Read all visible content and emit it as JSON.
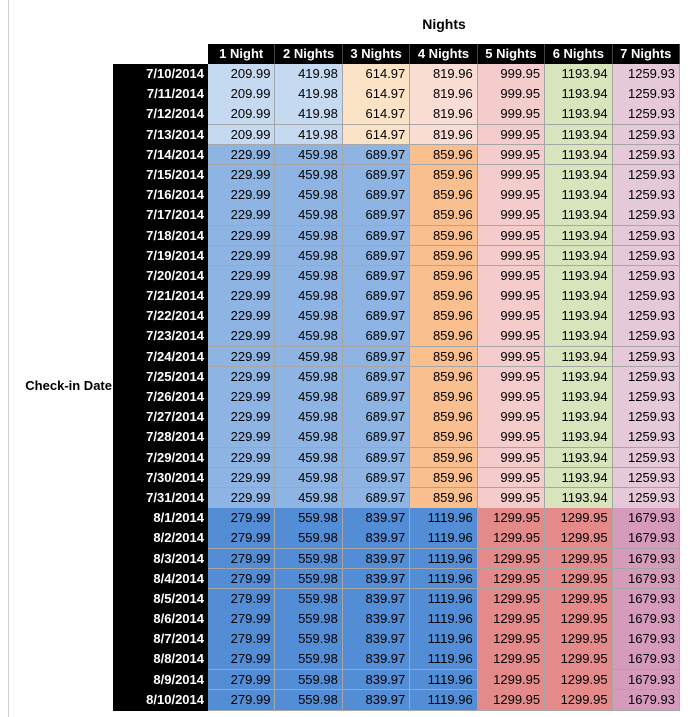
{
  "header": {
    "title": "Nights",
    "row_label": "Check-in Date"
  },
  "table": {
    "columns": [
      "1 Night",
      "2 Nights",
      "3 Nights",
      "4 Nights",
      "5 Nights",
      "6 Nights",
      "7 Nights"
    ],
    "rows": [
      {
        "date": "7/10/2014",
        "values": [
          209.99,
          419.98,
          614.97,
          819.96,
          999.95,
          1193.94,
          1259.93
        ],
        "colors": [
          "#c5d9f1",
          "#c5d9f1",
          "#fde3c6",
          "#f9dcd3",
          "#f4cccc",
          "#d8e4bc",
          "#e6c9d8"
        ]
      },
      {
        "date": "7/11/2014",
        "values": [
          209.99,
          419.98,
          614.97,
          819.96,
          999.95,
          1193.94,
          1259.93
        ],
        "colors": [
          "#c5d9f1",
          "#c5d9f1",
          "#fde3c6",
          "#f9dcd3",
          "#f4cccc",
          "#d8e4bc",
          "#e6c9d8"
        ]
      },
      {
        "date": "7/12/2014",
        "values": [
          209.99,
          419.98,
          614.97,
          819.96,
          999.95,
          1193.94,
          1259.93
        ],
        "colors": [
          "#c5d9f1",
          "#c5d9f1",
          "#fde3c6",
          "#f9dcd3",
          "#f4cccc",
          "#d8e4bc",
          "#e6c9d8"
        ]
      },
      {
        "date": "7/13/2014",
        "values": [
          209.99,
          419.98,
          614.97,
          819.96,
          999.95,
          1193.94,
          1259.93
        ],
        "colors": [
          "#c5d9f1",
          "#c5d9f1",
          "#fde3c6",
          "#f9dcd3",
          "#f4cccc",
          "#d8e4bc",
          "#e6c9d8"
        ]
      },
      {
        "date": "7/14/2014",
        "values": [
          229.99,
          459.98,
          689.97,
          859.96,
          999.95,
          1193.94,
          1259.93
        ],
        "colors": [
          "#8db4e2",
          "#8db4e2",
          "#8db4e2",
          "#fabf8f",
          "#f4cccc",
          "#d8e4bc",
          "#e6c9d8"
        ]
      },
      {
        "date": "7/15/2014",
        "values": [
          229.99,
          459.98,
          689.97,
          859.96,
          999.95,
          1193.94,
          1259.93
        ],
        "colors": [
          "#8db4e2",
          "#8db4e2",
          "#8db4e2",
          "#fabf8f",
          "#f4cccc",
          "#d8e4bc",
          "#e6c9d8"
        ]
      },
      {
        "date": "7/16/2014",
        "values": [
          229.99,
          459.98,
          689.97,
          859.96,
          999.95,
          1193.94,
          1259.93
        ],
        "colors": [
          "#8db4e2",
          "#8db4e2",
          "#8db4e2",
          "#fabf8f",
          "#f4cccc",
          "#d8e4bc",
          "#e6c9d8"
        ]
      },
      {
        "date": "7/17/2014",
        "values": [
          229.99,
          459.98,
          689.97,
          859.96,
          999.95,
          1193.94,
          1259.93
        ],
        "colors": [
          "#8db4e2",
          "#8db4e2",
          "#8db4e2",
          "#fabf8f",
          "#f4cccc",
          "#d8e4bc",
          "#e6c9d8"
        ]
      },
      {
        "date": "7/18/2014",
        "values": [
          229.99,
          459.98,
          689.97,
          859.96,
          999.95,
          1193.94,
          1259.93
        ],
        "colors": [
          "#8db4e2",
          "#8db4e2",
          "#8db4e2",
          "#fabf8f",
          "#f4cccc",
          "#d8e4bc",
          "#e6c9d8"
        ]
      },
      {
        "date": "7/19/2014",
        "values": [
          229.99,
          459.98,
          689.97,
          859.96,
          999.95,
          1193.94,
          1259.93
        ],
        "colors": [
          "#8db4e2",
          "#8db4e2",
          "#8db4e2",
          "#fabf8f",
          "#f4cccc",
          "#d8e4bc",
          "#e6c9d8"
        ]
      },
      {
        "date": "7/20/2014",
        "values": [
          229.99,
          459.98,
          689.97,
          859.96,
          999.95,
          1193.94,
          1259.93
        ],
        "colors": [
          "#8db4e2",
          "#8db4e2",
          "#8db4e2",
          "#fabf8f",
          "#f4cccc",
          "#d8e4bc",
          "#e6c9d8"
        ]
      },
      {
        "date": "7/21/2014",
        "values": [
          229.99,
          459.98,
          689.97,
          859.96,
          999.95,
          1193.94,
          1259.93
        ],
        "colors": [
          "#8db4e2",
          "#8db4e2",
          "#8db4e2",
          "#fabf8f",
          "#f4cccc",
          "#d8e4bc",
          "#e6c9d8"
        ]
      },
      {
        "date": "7/22/2014",
        "values": [
          229.99,
          459.98,
          689.97,
          859.96,
          999.95,
          1193.94,
          1259.93
        ],
        "colors": [
          "#8db4e2",
          "#8db4e2",
          "#8db4e2",
          "#fabf8f",
          "#f4cccc",
          "#d8e4bc",
          "#e6c9d8"
        ]
      },
      {
        "date": "7/23/2014",
        "values": [
          229.99,
          459.98,
          689.97,
          859.96,
          999.95,
          1193.94,
          1259.93
        ],
        "colors": [
          "#8db4e2",
          "#8db4e2",
          "#8db4e2",
          "#fabf8f",
          "#f4cccc",
          "#d8e4bc",
          "#e6c9d8"
        ]
      },
      {
        "date": "7/24/2014",
        "values": [
          229.99,
          459.98,
          689.97,
          859.96,
          999.95,
          1193.94,
          1259.93
        ],
        "colors": [
          "#8db4e2",
          "#8db4e2",
          "#8db4e2",
          "#fabf8f",
          "#f4cccc",
          "#d8e4bc",
          "#e6c9d8"
        ]
      },
      {
        "date": "7/25/2014",
        "values": [
          229.99,
          459.98,
          689.97,
          859.96,
          999.95,
          1193.94,
          1259.93
        ],
        "colors": [
          "#8db4e2",
          "#8db4e2",
          "#8db4e2",
          "#fabf8f",
          "#f4cccc",
          "#d8e4bc",
          "#e6c9d8"
        ]
      },
      {
        "date": "7/26/2014",
        "values": [
          229.99,
          459.98,
          689.97,
          859.96,
          999.95,
          1193.94,
          1259.93
        ],
        "colors": [
          "#8db4e2",
          "#8db4e2",
          "#8db4e2",
          "#fabf8f",
          "#f4cccc",
          "#d8e4bc",
          "#e6c9d8"
        ]
      },
      {
        "date": "7/27/2014",
        "values": [
          229.99,
          459.98,
          689.97,
          859.96,
          999.95,
          1193.94,
          1259.93
        ],
        "colors": [
          "#8db4e2",
          "#8db4e2",
          "#8db4e2",
          "#fabf8f",
          "#f4cccc",
          "#d8e4bc",
          "#e6c9d8"
        ]
      },
      {
        "date": "7/28/2014",
        "values": [
          229.99,
          459.98,
          689.97,
          859.96,
          999.95,
          1193.94,
          1259.93
        ],
        "colors": [
          "#8db4e2",
          "#8db4e2",
          "#8db4e2",
          "#fabf8f",
          "#f4cccc",
          "#d8e4bc",
          "#e6c9d8"
        ]
      },
      {
        "date": "7/29/2014",
        "values": [
          229.99,
          459.98,
          689.97,
          859.96,
          999.95,
          1193.94,
          1259.93
        ],
        "colors": [
          "#8db4e2",
          "#8db4e2",
          "#8db4e2",
          "#fabf8f",
          "#f4cccc",
          "#d8e4bc",
          "#e6c9d8"
        ]
      },
      {
        "date": "7/30/2014",
        "values": [
          229.99,
          459.98,
          689.97,
          859.96,
          999.95,
          1193.94,
          1259.93
        ],
        "colors": [
          "#8db4e2",
          "#8db4e2",
          "#8db4e2",
          "#fabf8f",
          "#f4cccc",
          "#d8e4bc",
          "#e6c9d8"
        ]
      },
      {
        "date": "7/31/2014",
        "values": [
          229.99,
          459.98,
          689.97,
          859.96,
          999.95,
          1193.94,
          1259.93
        ],
        "colors": [
          "#8db4e2",
          "#8db4e2",
          "#8db4e2",
          "#fabf8f",
          "#f4cccc",
          "#d8e4bc",
          "#e6c9d8"
        ]
      },
      {
        "date": "8/1/2014",
        "values": [
          279.99,
          559.98,
          839.97,
          1119.96,
          1299.95,
          1299.95,
          1679.93
        ],
        "colors": [
          "#538dd5",
          "#538dd5",
          "#538dd5",
          "#538dd5",
          "#e48a8a",
          "#e48a8a",
          "#d69bbb"
        ]
      },
      {
        "date": "8/2/2014",
        "values": [
          279.99,
          559.98,
          839.97,
          1119.96,
          1299.95,
          1299.95,
          1679.93
        ],
        "colors": [
          "#538dd5",
          "#538dd5",
          "#538dd5",
          "#538dd5",
          "#e48a8a",
          "#e48a8a",
          "#d69bbb"
        ]
      },
      {
        "date": "8/3/2014",
        "values": [
          279.99,
          559.98,
          839.97,
          1119.96,
          1299.95,
          1299.95,
          1679.93
        ],
        "colors": [
          "#538dd5",
          "#538dd5",
          "#538dd5",
          "#538dd5",
          "#e48a8a",
          "#e48a8a",
          "#d69bbb"
        ]
      },
      {
        "date": "8/4/2014",
        "values": [
          279.99,
          559.98,
          839.97,
          1119.96,
          1299.95,
          1299.95,
          1679.93
        ],
        "colors": [
          "#538dd5",
          "#538dd5",
          "#538dd5",
          "#538dd5",
          "#e48a8a",
          "#e48a8a",
          "#d69bbb"
        ]
      },
      {
        "date": "8/5/2014",
        "values": [
          279.99,
          559.98,
          839.97,
          1119.96,
          1299.95,
          1299.95,
          1679.93
        ],
        "colors": [
          "#538dd5",
          "#538dd5",
          "#538dd5",
          "#538dd5",
          "#e48a8a",
          "#e48a8a",
          "#d69bbb"
        ]
      },
      {
        "date": "8/6/2014",
        "values": [
          279.99,
          559.98,
          839.97,
          1119.96,
          1299.95,
          1299.95,
          1679.93
        ],
        "colors": [
          "#538dd5",
          "#538dd5",
          "#538dd5",
          "#538dd5",
          "#e48a8a",
          "#e48a8a",
          "#d69bbb"
        ]
      },
      {
        "date": "8/7/2014",
        "values": [
          279.99,
          559.98,
          839.97,
          1119.96,
          1299.95,
          1299.95,
          1679.93
        ],
        "colors": [
          "#538dd5",
          "#538dd5",
          "#538dd5",
          "#538dd5",
          "#e48a8a",
          "#e48a8a",
          "#d69bbb"
        ]
      },
      {
        "date": "8/8/2014",
        "values": [
          279.99,
          559.98,
          839.97,
          1119.96,
          1299.95,
          1299.95,
          1679.93
        ],
        "colors": [
          "#538dd5",
          "#538dd5",
          "#538dd5",
          "#538dd5",
          "#e48a8a",
          "#e48a8a",
          "#d69bbb"
        ]
      },
      {
        "date": "8/9/2014",
        "values": [
          279.99,
          559.98,
          839.97,
          1119.96,
          1299.95,
          1299.95,
          1679.93
        ],
        "colors": [
          "#538dd5",
          "#538dd5",
          "#538dd5",
          "#538dd5",
          "#e48a8a",
          "#e48a8a",
          "#d69bbb"
        ]
      },
      {
        "date": "8/10/2014",
        "values": [
          279.99,
          559.98,
          839.97,
          1119.96,
          1299.95,
          1299.95,
          1679.93
        ],
        "colors": [
          "#538dd5",
          "#538dd5",
          "#538dd5",
          "#538dd5",
          "#e48a8a",
          "#e48a8a",
          "#d69bbb"
        ]
      }
    ]
  }
}
